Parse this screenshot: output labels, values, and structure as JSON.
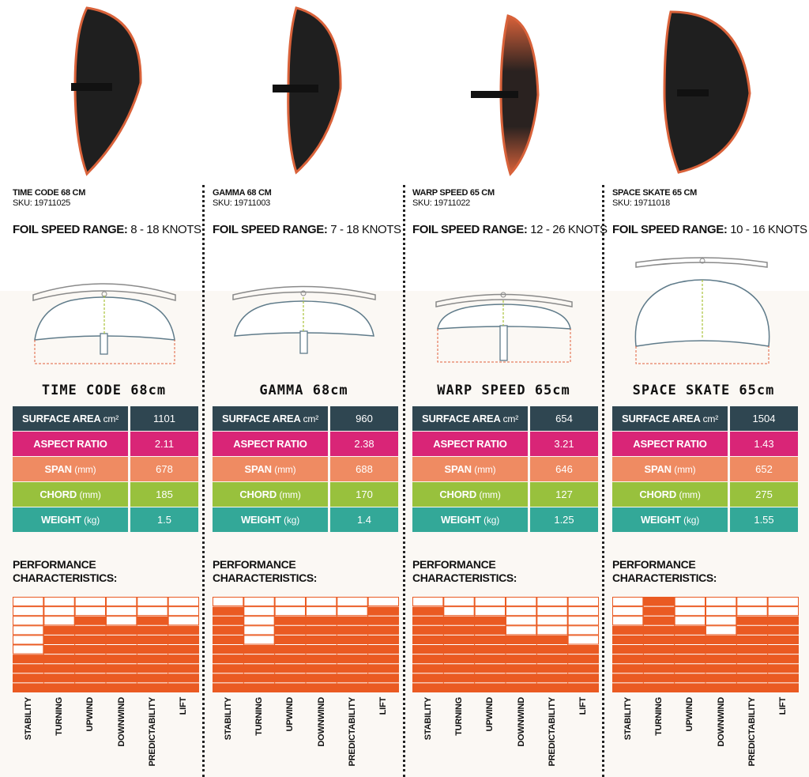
{
  "colors": {
    "surface_area": "#2f4651",
    "aspect_ratio": "#d92577",
    "span": "#ef8b62",
    "chord": "#98c13d",
    "weight": "#33a898",
    "bar_fill": "#ea5a22",
    "foil_edge": "#d9623a",
    "foil_body": "#1f1f1f"
  },
  "perf_title": [
    "PERFORMANCE",
    "CHARACTERISTICS:"
  ],
  "perf_categories": [
    "STABILITY",
    "TURNING",
    "UPWIND",
    "DOWNWIND",
    "PREDICTABILITY",
    "LIFT"
  ],
  "perf_scale_max": 10,
  "speed_label": "FOIL SPEED RANGE:",
  "foils": [
    {
      "name_line": "TIME CODE 68 CM",
      "sku": "SKU: 19711025",
      "speed_range": "8 - 18 KNOTS",
      "title": "TIME CODE 68cm",
      "specs": [
        {
          "label": "SURFACE AREA",
          "unit": "cm²",
          "value": "1101"
        },
        {
          "label": "ASPECT RATIO",
          "unit": "",
          "value": "2.11"
        },
        {
          "label": "SPAN",
          "unit": "(mm)",
          "value": "678"
        },
        {
          "label": "CHORD",
          "unit": "(mm)",
          "value": "185"
        },
        {
          "label": "WEIGHT",
          "unit": "(kg)",
          "value": "1.5"
        }
      ],
      "performance": [
        4,
        7,
        8,
        7,
        8,
        7
      ]
    },
    {
      "name_line": "GAMMA 68 CM",
      "sku": "SKU: 19711003",
      "speed_range": "7 - 18 KNOTS",
      "title": "GAMMA 68cm",
      "specs": [
        {
          "label": "SURFACE AREA",
          "unit": "cm²",
          "value": "960"
        },
        {
          "label": "ASPECT RATIO",
          "unit": "",
          "value": "2.38"
        },
        {
          "label": "SPAN",
          "unit": "(mm)",
          "value": "688"
        },
        {
          "label": "CHORD",
          "unit": "(mm)",
          "value": "170"
        },
        {
          "label": "WEIGHT",
          "unit": "(kg)",
          "value": "1.4"
        }
      ],
      "performance": [
        9,
        5,
        8,
        8,
        8,
        9
      ]
    },
    {
      "name_line": "WARP SPEED 65 CM",
      "sku": "SKU: 19711022",
      "speed_range": "12 - 26 KNOTS",
      "title": "WARP SPEED 65cm",
      "specs": [
        {
          "label": "SURFACE AREA",
          "unit": "cm²",
          "value": "654"
        },
        {
          "label": "ASPECT RATIO",
          "unit": "",
          "value": "3.21"
        },
        {
          "label": "SPAN",
          "unit": "(mm)",
          "value": "646"
        },
        {
          "label": "CHORD",
          "unit": "(mm)",
          "value": "127"
        },
        {
          "label": "WEIGHT",
          "unit": "(kg)",
          "value": "1.25"
        }
      ],
      "performance": [
        9,
        8,
        8,
        6,
        6,
        5
      ]
    },
    {
      "name_line": "SPACE SKATE 65 CM",
      "sku": "SKU: 19711018",
      "speed_range": "10 - 16 KNOTS",
      "title": "SPACE SKATE 65cm",
      "specs": [
        {
          "label": "SURFACE AREA",
          "unit": "cm²",
          "value": "1504"
        },
        {
          "label": "ASPECT RATIO",
          "unit": "",
          "value": "1.43"
        },
        {
          "label": "SPAN",
          "unit": "(mm)",
          "value": "652"
        },
        {
          "label": "CHORD",
          "unit": "(mm)",
          "value": "275"
        },
        {
          "label": "WEIGHT",
          "unit": "(kg)",
          "value": "1.55"
        }
      ],
      "performance": [
        7,
        10,
        7,
        6,
        8,
        8
      ]
    }
  ]
}
